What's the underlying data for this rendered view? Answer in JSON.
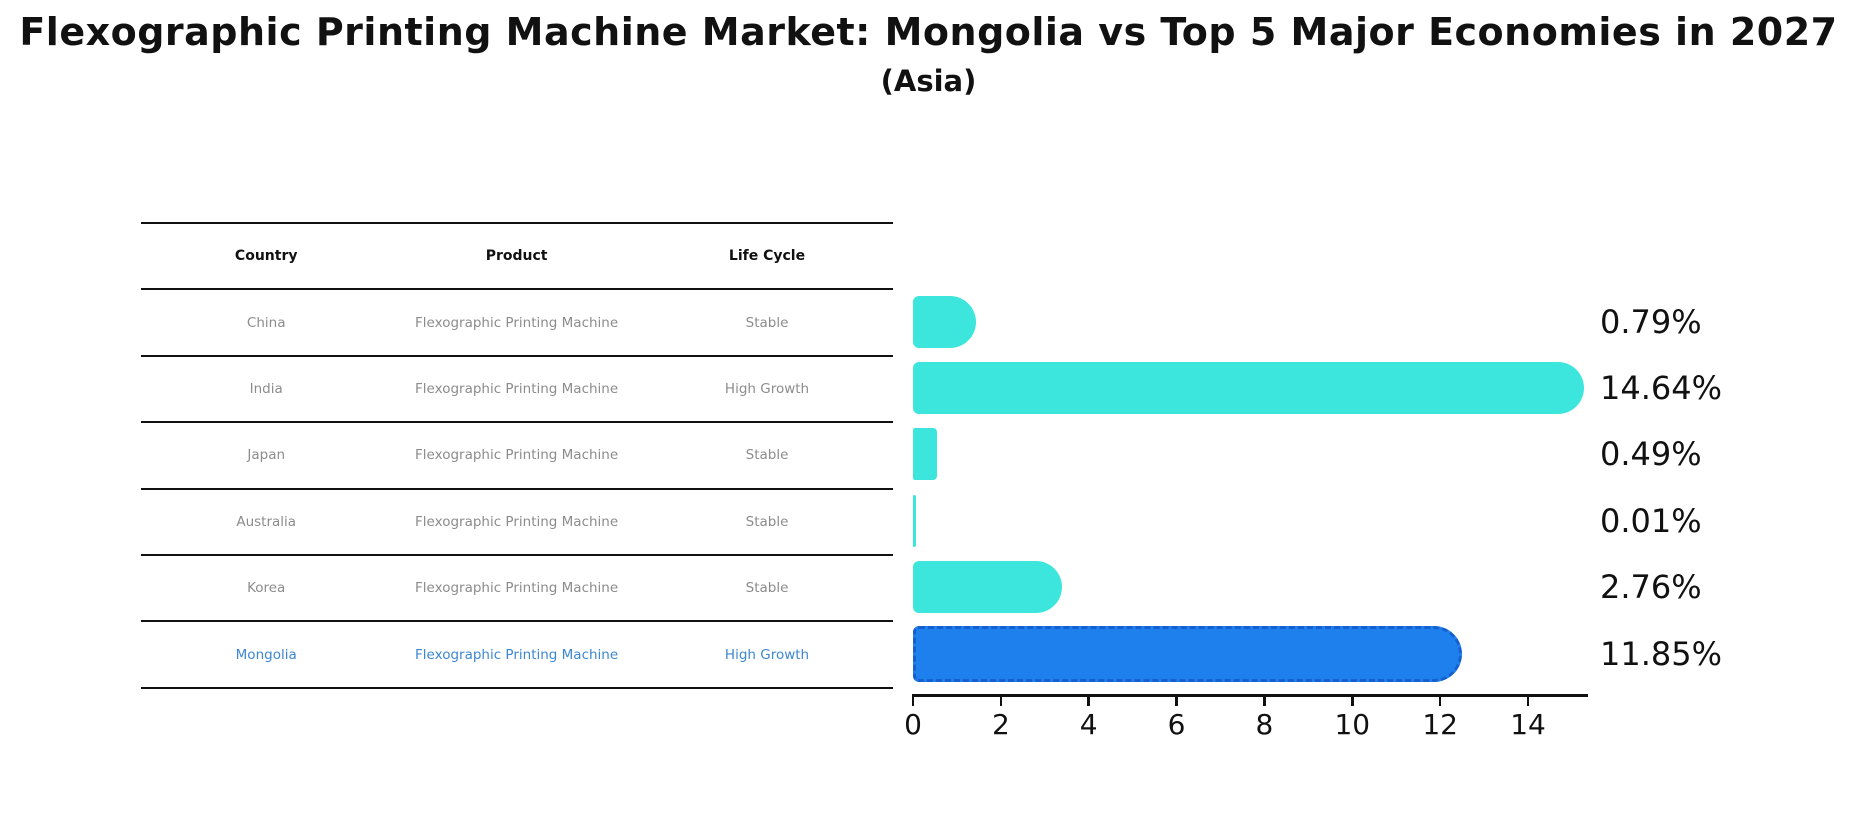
{
  "title": "Flexographic Printing Machine Market: Mongolia vs Top 5 Major Economies in 2027",
  "subtitle": "(Asia)",
  "table": {
    "headers": [
      "Country",
      "Product",
      "Life Cycle"
    ],
    "rows": [
      {
        "country": "China",
        "product": "Flexographic Printing Machine",
        "life_cycle": "Stable",
        "highlight": false
      },
      {
        "country": "India",
        "product": "Flexographic Printing Machine",
        "life_cycle": "High Growth",
        "highlight": false
      },
      {
        "country": "Japan",
        "product": "Flexographic Printing Machine",
        "life_cycle": "Stable",
        "highlight": false
      },
      {
        "country": "Australia",
        "product": "Flexographic Printing Machine",
        "life_cycle": "Stable",
        "highlight": false
      },
      {
        "country": "Korea",
        "product": "Flexographic Printing Machine",
        "life_cycle": "Stable",
        "highlight": false
      },
      {
        "country": "Mongolia",
        "product": "Flexographic Printing Machine",
        "life_cycle": "High Growth",
        "highlight": true
      }
    ]
  },
  "chart_data": {
    "type": "bar",
    "orientation": "horizontal",
    "title": "Flexographic Printing Machine Market: Mongolia vs Top 5 Major Economies in 2027 (Asia)",
    "categories": [
      "China",
      "India",
      "Japan",
      "Australia",
      "Korea",
      "Mongolia"
    ],
    "values": [
      0.79,
      14.64,
      0.49,
      0.01,
      2.76,
      11.85
    ],
    "value_labels": [
      "0.79%",
      "14.64%",
      "0.49%",
      "0.01%",
      "2.76%",
      "11.85%"
    ],
    "highlight_category": "Mongolia",
    "x_ticks": [
      0,
      2,
      4,
      6,
      8,
      10,
      12,
      14
    ],
    "xlim": [
      0,
      15.35
    ],
    "grid": false,
    "legend": "none",
    "xlabel": "",
    "ylabel": "",
    "colors": {
      "bar": "#3de6dc",
      "highlight_bar": "#1e80ec",
      "highlight_bar_border": "#1560ce",
      "highlight_text": "#3d87d2",
      "table_header_text": "#111111",
      "table_body_text": "#8c8c8c",
      "axis": "#111111",
      "value_label_text": "#111111",
      "background": "#ffffff"
    }
  }
}
